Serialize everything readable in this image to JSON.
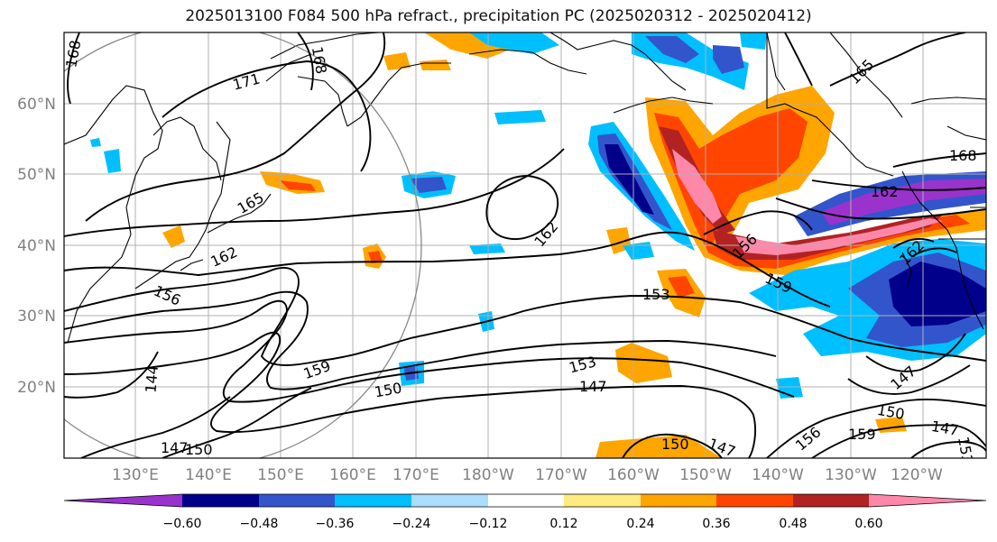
{
  "title": "2025013100 F084 500 hPa refract., precipitation PC (2025020312 - 2025020412)",
  "lon_ticks": [
    "130°E",
    "140°E",
    "150°E",
    "160°E",
    "170°E",
    "180°W",
    "170°W",
    "160°W",
    "150°W",
    "140°W",
    "130°W",
    "120°W"
  ],
  "lat_ticks": [
    "60°N",
    "50°N",
    "40°N",
    "30°N",
    "20°N"
  ],
  "contour_labels": [
    "168",
    "171",
    "168",
    "165",
    "165",
    "168",
    "162",
    "162",
    "162",
    "156",
    "162",
    "159",
    "156",
    "153",
    "159",
    "153",
    "150",
    "147",
    "144",
    "147",
    "150",
    "150",
    "147",
    "156",
    "159",
    "150",
    "147",
    "147",
    "153"
  ],
  "colorbar": {
    "ticks": [
      "−0.60",
      "−0.48",
      "−0.36",
      "−0.24",
      "−0.12",
      "0.12",
      "0.24",
      "0.36",
      "0.48",
      "0.60"
    ],
    "colors": [
      "#9933cc",
      "#00008b",
      "#3355cc",
      "#00bfff",
      "#aaddff",
      "#ffffff",
      "#ffea80",
      "#ffa500",
      "#ff4500",
      "#b22222",
      "#ff88aa"
    ]
  },
  "palette": {
    "purple": "#9933cc",
    "navy": "#00008b",
    "blue": "#3355cc",
    "cyan": "#00bfff",
    "lightblue": "#aaddff",
    "yellow": "#ffea80",
    "orange": "#ffa500",
    "red": "#ff4500",
    "darkred": "#b22222",
    "pink": "#ff88aa"
  }
}
